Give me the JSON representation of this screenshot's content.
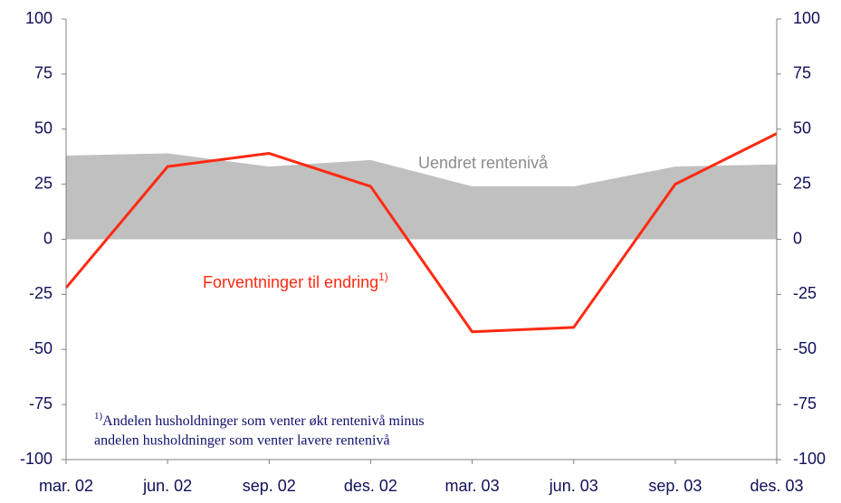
{
  "chart_data": {
    "type": "line",
    "categories": [
      "mar. 02",
      "jun. 02",
      "sep. 02",
      "des. 02",
      "mar. 03",
      "jun. 03",
      "sep. 03",
      "des. 03"
    ],
    "series": [
      {
        "name": "Uendret rentenivå",
        "kind": "area",
        "color": "#c0c0c0",
        "values": [
          38,
          39,
          33,
          36,
          24,
          24,
          33,
          34
        ]
      },
      {
        "name": "Forventninger til endring",
        "name_sup": "1)",
        "kind": "line",
        "color": "#ff2a12",
        "values": [
          -22,
          33,
          39,
          24,
          -42,
          -40,
          25,
          48
        ]
      }
    ],
    "ylim": [
      -100,
      100
    ],
    "yticks": [
      -100,
      -75,
      -50,
      -25,
      0,
      25,
      50,
      75,
      100
    ],
    "y2lim": [
      -100,
      100
    ],
    "y2ticks": [
      -100,
      -75,
      -50,
      -25,
      0,
      25,
      50,
      75,
      100
    ],
    "footnote": {
      "marker": "1)",
      "lines": [
        "Andelen husholdninger som venter økt rentenivå minus",
        "andelen husholdninger som venter lavere rentenivå"
      ]
    }
  }
}
